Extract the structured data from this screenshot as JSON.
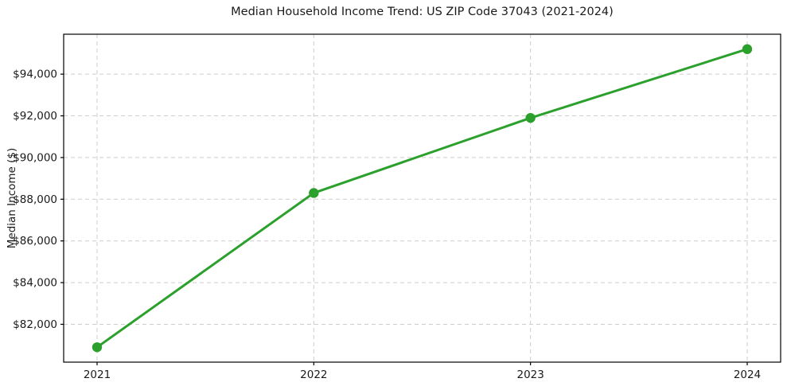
{
  "chart_data": {
    "type": "line",
    "title": "Median Household Income Trend: US ZIP Code 37043 (2021-2024)",
    "xlabel": "",
    "ylabel": "Median Income ($)",
    "categories": [
      "2021",
      "2022",
      "2023",
      "2024"
    ],
    "values": [
      80900,
      88300,
      91900,
      95200
    ],
    "ylim": [
      80185,
      95915
    ],
    "yticks": [
      {
        "value": 82000,
        "label": "$82,000"
      },
      {
        "value": 84000,
        "label": "$84,000"
      },
      {
        "value": 86000,
        "label": "$86,000"
      },
      {
        "value": 88000,
        "label": "$88,000"
      },
      {
        "value": 90000,
        "label": "$90,000"
      },
      {
        "value": 92000,
        "label": "$92,000"
      },
      {
        "value": 94000,
        "label": "$94,000"
      }
    ],
    "grid": true,
    "legend": false,
    "line_color": "#2ca02c",
    "marker_color": "#2ca02c",
    "grid_color": "#cdcdcd",
    "spine_color": "#000000",
    "tick_color": "#000000",
    "text_color": "#1a1a1a",
    "background_color": "#ffffff"
  }
}
